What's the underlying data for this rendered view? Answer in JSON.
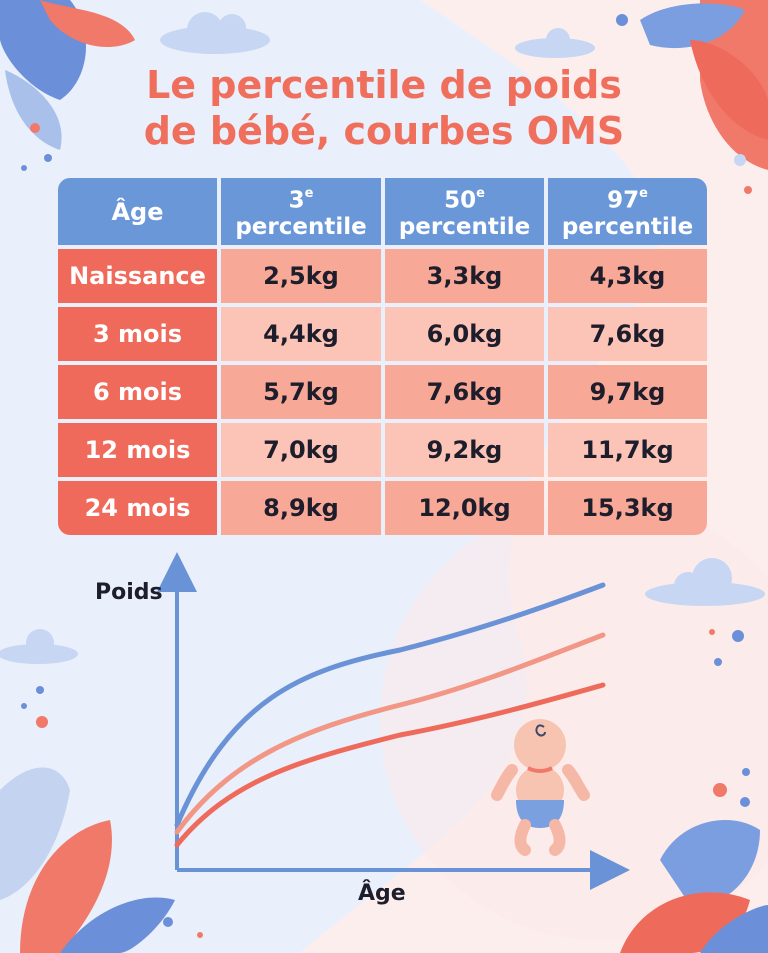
{
  "title_line1": "Le percentile de poids",
  "title_line2": "de bébé, courbes OMS",
  "table": {
    "header": [
      "Âge",
      "3",
      "50",
      "97"
    ],
    "header_suffix": "percentile",
    "header_sup": "e",
    "rows": [
      {
        "age": "Naissance",
        "p3": "2,5kg",
        "p50": "3,3kg",
        "p97": "4,3kg"
      },
      {
        "age": "3 mois",
        "p3": "4,4kg",
        "p50": "6,0kg",
        "p97": "7,6kg"
      },
      {
        "age": "6 mois",
        "p3": "5,7kg",
        "p50": "7,6kg",
        "p97": "9,7kg"
      },
      {
        "age": "12 mois",
        "p3": "7,0kg",
        "p50": "9,2kg",
        "p97": "11,7kg"
      },
      {
        "age": "24 mois",
        "p3": "8,9kg",
        "p50": "12,0kg",
        "p97": "15,3kg"
      }
    ]
  },
  "chart": {
    "ylabel": "Poids",
    "xlabel": "Âge"
  },
  "colors": {
    "accent": "#ef6f5c",
    "header_blue": "#6a97d8",
    "curve_blue": "#6a92d6",
    "curve_light": "#f29686",
    "curve_red": "#ee6b5c"
  }
}
